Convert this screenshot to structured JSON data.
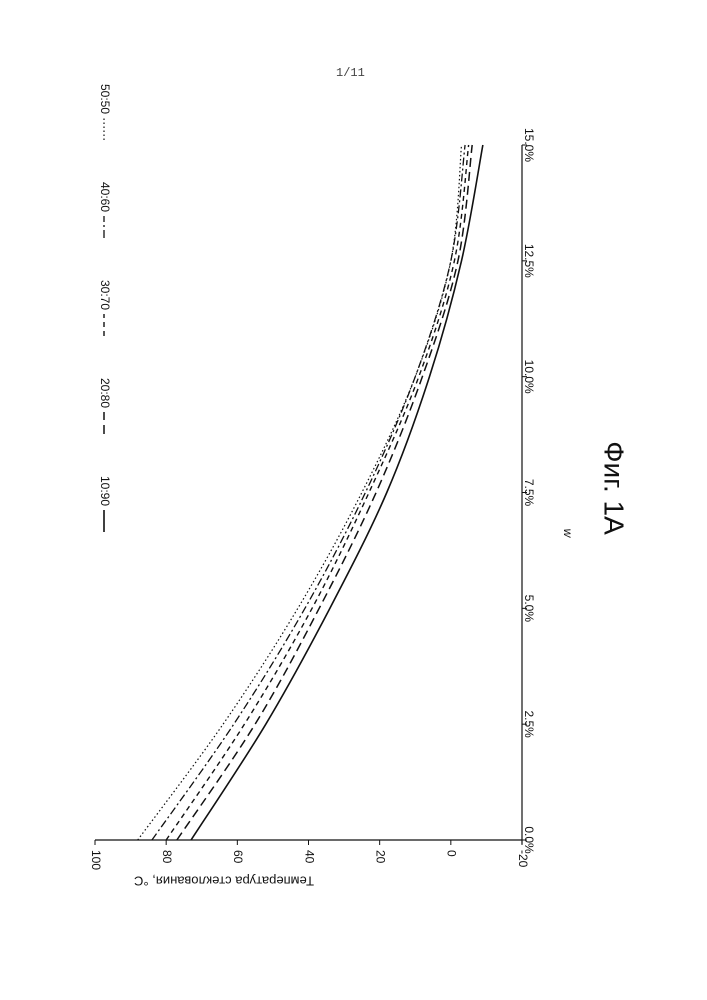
{
  "page": {
    "page_number": "1/11",
    "figure_caption": "Фиг. 1А"
  },
  "chart_data": {
    "type": "line",
    "title": "",
    "xlabel": "w",
    "ylabel": "Температура стеклования, °C",
    "xlim": [
      0,
      15
    ],
    "ylim": [
      -20,
      100
    ],
    "x_tick_labels": [
      "0.0%",
      "2.5%",
      "5.0%",
      "7.5%",
      "10.0%",
      "12.5%",
      "15.0%"
    ],
    "y_tick_labels": [
      "100",
      "80",
      "60",
      "40",
      "20",
      "0",
      "-20"
    ],
    "x_ticks": [
      0,
      2.5,
      5,
      7.5,
      10,
      12.5,
      15
    ],
    "y_ticks": [
      100,
      80,
      60,
      40,
      20,
      0,
      -20
    ],
    "x": [
      0,
      2.5,
      5,
      7.5,
      10,
      12.5,
      15
    ],
    "series": [
      {
        "name": "10:90",
        "style": "solid",
        "values": [
          73,
          52,
          34,
          18,
          6,
          -3,
          -9
        ]
      },
      {
        "name": "20:80",
        "style": "dashed",
        "values": [
          77,
          55,
          37,
          21,
          8,
          -2,
          -6
        ]
      },
      {
        "name": "30:70",
        "style": "dashed-short",
        "values": [
          80,
          58,
          39,
          23,
          9,
          -1,
          -5
        ]
      },
      {
        "name": "40:60",
        "style": "dashdot",
        "values": [
          84,
          61,
          41,
          24,
          10,
          0,
          -4
        ]
      },
      {
        "name": "50:50",
        "style": "dotted",
        "values": [
          88,
          64,
          43,
          25,
          10,
          0,
          -3
        ]
      }
    ],
    "legend_position": "top",
    "grid": false
  }
}
